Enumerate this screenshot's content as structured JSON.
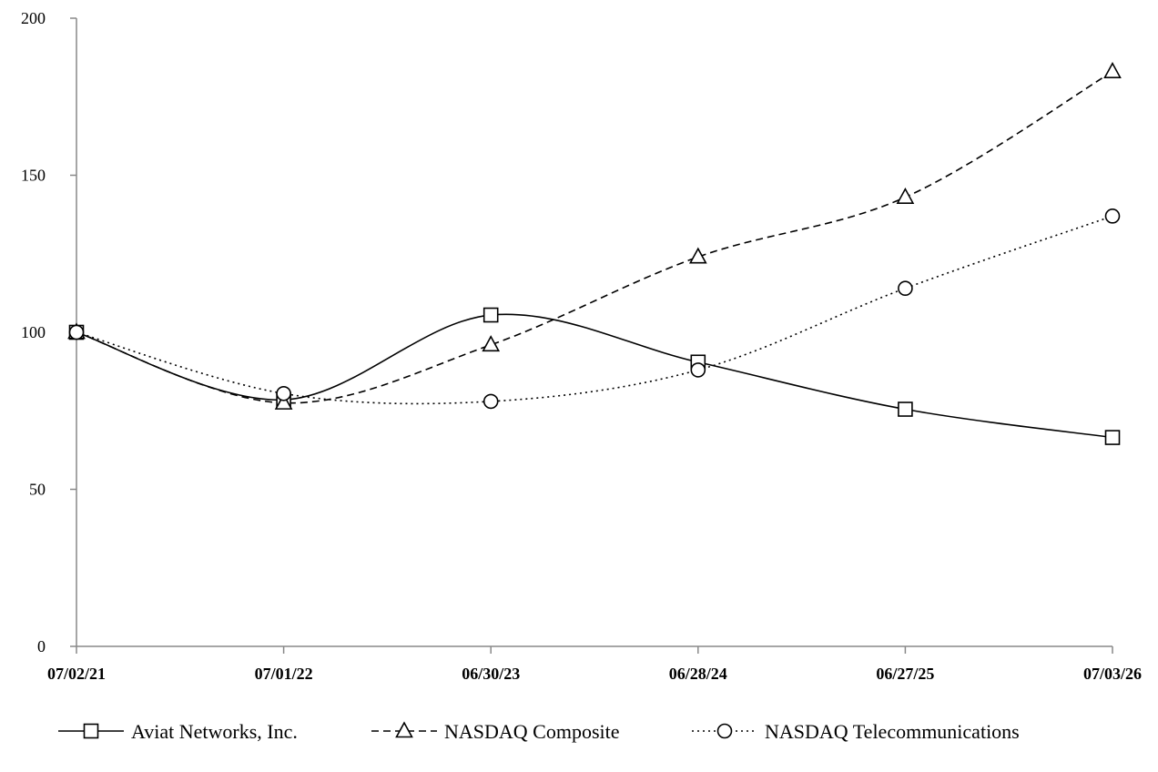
{
  "chart_data": {
    "type": "line",
    "title": "",
    "xlabel": "",
    "ylabel": "",
    "categories": [
      "07/02/21",
      "07/01/22",
      "06/30/23",
      "06/28/24",
      "06/27/25",
      "07/03/26"
    ],
    "ylim": [
      0,
      200
    ],
    "yticks": [
      0,
      50,
      100,
      150,
      200
    ],
    "grid": false,
    "legend_position": "bottom",
    "series": [
      {
        "name": "Aviat Networks, Inc.",
        "marker": "square",
        "dash": "solid",
        "values": [
          100,
          78.5,
          105.5,
          90.5,
          75.5,
          66.5
        ]
      },
      {
        "name": "NASDAQ Composite",
        "marker": "triangle",
        "dash": "dashed",
        "values": [
          100,
          77.5,
          96,
          124,
          143,
          183
        ]
      },
      {
        "name": "NASDAQ Telecommunications",
        "marker": "circle",
        "dash": "dotted",
        "values": [
          100,
          80.5,
          78,
          88,
          114,
          137
        ]
      }
    ]
  }
}
